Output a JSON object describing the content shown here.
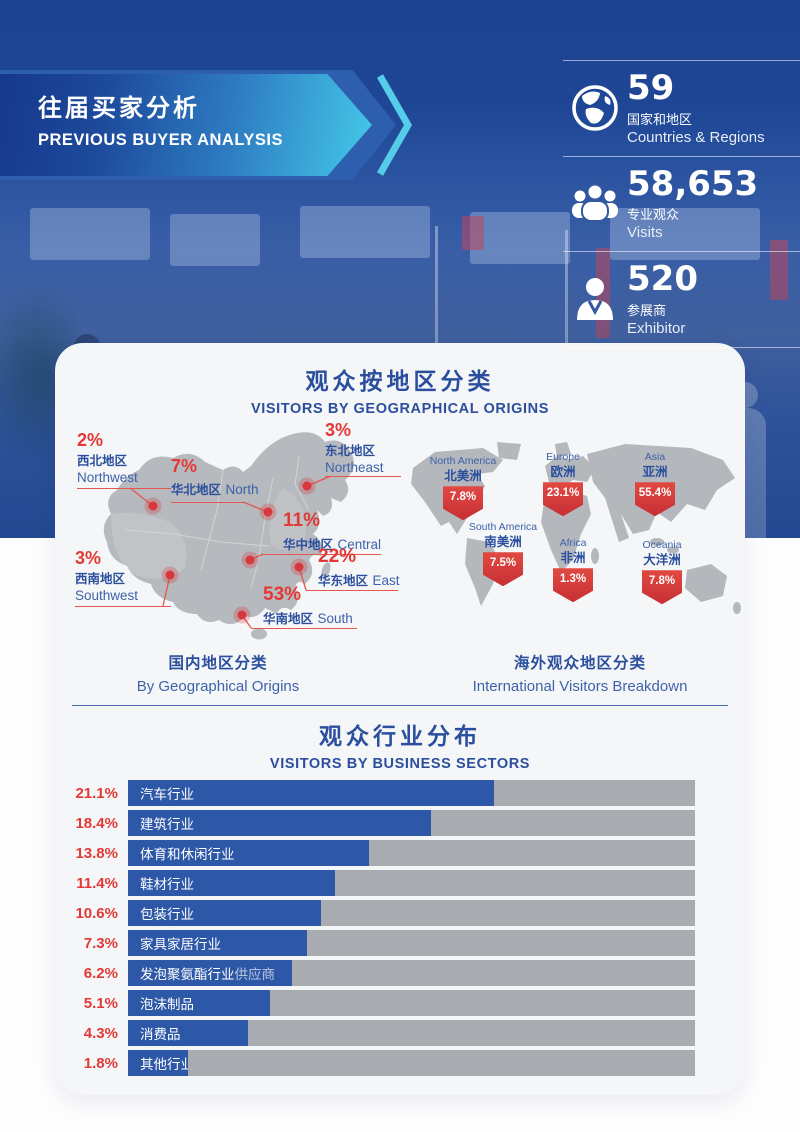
{
  "banner": {
    "title_zh": "往届买家分析",
    "title_en": "PREVIOUS BUYER ANALYSIS"
  },
  "stats": [
    {
      "icon": "globe-icon",
      "value": "59",
      "label_zh": "国家和地区",
      "label_en": "Countries & Regions"
    },
    {
      "icon": "visitors-icon",
      "value": "58,653",
      "label_zh": "专业观众",
      "label_en": "Visits"
    },
    {
      "icon": "exhibitor-icon",
      "value": "520",
      "label_zh": "参展商",
      "label_en": "Exhibitor"
    }
  ],
  "section_geo": {
    "title_zh": "观众按地区分类",
    "title_en": "VISITORS BY GEOGRAPHICAL ORIGINS",
    "china": {
      "caption_zh": "国内地区分类",
      "caption_en": "By Geographical Origins",
      "regions": [
        {
          "pct": "2%",
          "zh": "西北地区",
          "en": "Northwest"
        },
        {
          "pct": "7%",
          "zh": "华北地区",
          "en": "North"
        },
        {
          "pct": "3%",
          "zh": "东北地区",
          "en": "Northeast"
        },
        {
          "pct": "11%",
          "zh": "华中地区",
          "en": "Central"
        },
        {
          "pct": "22%",
          "zh": "华东地区",
          "en": "East"
        },
        {
          "pct": "3%",
          "zh": "西南地区",
          "en": "Southwest"
        },
        {
          "pct": "53%",
          "zh": "华南地区",
          "en": "South"
        }
      ]
    },
    "world": {
      "caption_zh": "海外观众地区分类",
      "caption_en": "International Visitors Breakdown",
      "continents": [
        {
          "pct": "7.8%",
          "en": "North America",
          "zh": "北美洲"
        },
        {
          "pct": "23.1%",
          "en": "Europe",
          "zh": "欧洲"
        },
        {
          "pct": "55.4%",
          "en": "Asia",
          "zh": "亚洲"
        },
        {
          "pct": "7.5%",
          "en": "South America",
          "zh": "南美洲"
        },
        {
          "pct": "1.3%",
          "en": "Africa",
          "zh": "非洲"
        },
        {
          "pct": "7.8%",
          "en": "Oceania",
          "zh": "大洋洲"
        }
      ]
    }
  },
  "section_sectors": {
    "title_zh": "观众行业分布",
    "title_en": "VISITORS BY BUSINESS SECTORS",
    "rows": [
      {
        "pct": "21.1%",
        "label": "汽车行业",
        "suffix": ""
      },
      {
        "pct": "18.4%",
        "label": "建筑行业",
        "suffix": ""
      },
      {
        "pct": "13.8%",
        "label": "体育和休闲行业",
        "suffix": ""
      },
      {
        "pct": "11.4%",
        "label": "鞋材行业",
        "suffix": ""
      },
      {
        "pct": "10.6%",
        "label": "包装行业",
        "suffix": ""
      },
      {
        "pct": "7.3%",
        "label": "家具家居行业",
        "suffix": ""
      },
      {
        "pct": "6.2%",
        "label": "发泡聚氨酯行业",
        "suffix": "供应商"
      },
      {
        "pct": "5.1%",
        "label": "泡沫制品",
        "suffix": ""
      },
      {
        "pct": "4.3%",
        "label": "消费品",
        "suffix": ""
      },
      {
        "pct": "1.8%",
        "label": "其他行业",
        "suffix": ""
      }
    ]
  },
  "chart_data": [
    {
      "type": "map-annotated",
      "title": "国内地区分类 By Geographical Origins",
      "region": "China",
      "categories": [
        "西北地区 Northwest",
        "华北地区 North",
        "东北地区 Northeast",
        "华中地区 Central",
        "华东地区 East",
        "西南地区 Southwest",
        "华南地区 South"
      ],
      "values": [
        2,
        7,
        3,
        11,
        22,
        3,
        53
      ],
      "unit": "%"
    },
    {
      "type": "map-annotated",
      "title": "海外观众地区分类 International Visitors Breakdown",
      "region": "World",
      "categories": [
        "North America 北美洲",
        "Europe 欧洲",
        "Asia 亚洲",
        "South America 南美洲",
        "Africa 非洲",
        "Oceania 大洋洲"
      ],
      "values": [
        7.8,
        23.1,
        55.4,
        7.5,
        1.3,
        7.8
      ],
      "unit": "%"
    },
    {
      "type": "bar",
      "orientation": "horizontal",
      "title": "观众行业分布 VISITORS BY BUSINESS SECTORS",
      "categories": [
        "汽车行业",
        "建筑行业",
        "体育和休闲行业",
        "鞋材行业",
        "包装行业",
        "家具家居行业",
        "发泡聚氨酯行业供应商",
        "泡沫制品",
        "消费品",
        "其他行业"
      ],
      "values": [
        21.1,
        18.4,
        13.8,
        11.4,
        10.6,
        7.3,
        6.2,
        5.1,
        4.3,
        1.8
      ],
      "unit": "%",
      "bar_fill_pct_of_track": [
        64.5,
        53.5,
        42.5,
        36.5,
        34,
        31.5,
        29,
        25,
        21.2,
        10.6
      ]
    }
  ],
  "colors": {
    "hero_blue": "#1d4493",
    "banner_cyan": "#44c9e9",
    "title_blue": "#2b4f9e",
    "accent_red": "#e23936",
    "badge_red": "#d63a3e",
    "bar_blue": "#2d57a7",
    "bar_gray": "#a8abaf",
    "map_gray": "#b6b9bd",
    "card_bg": "#f5f6f7"
  }
}
